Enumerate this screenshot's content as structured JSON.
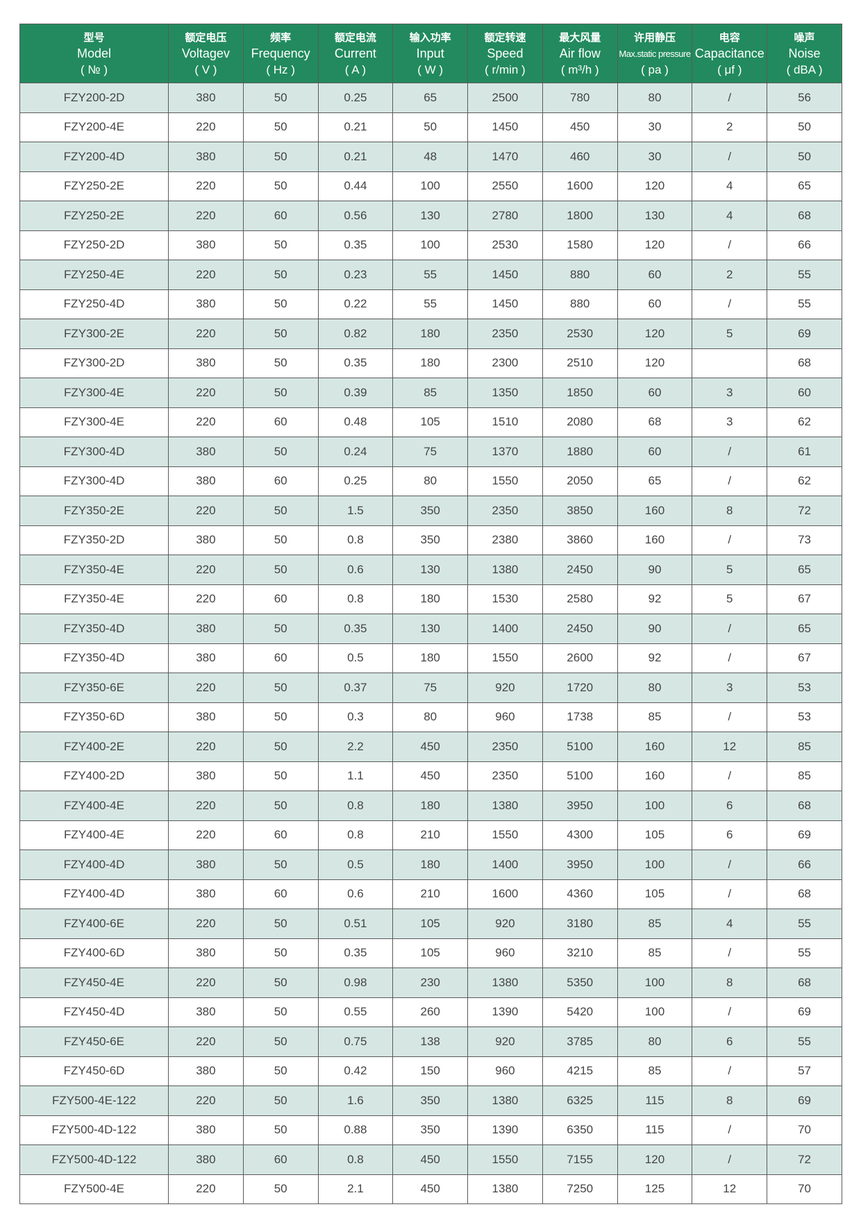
{
  "table": {
    "headers": [
      [
        "型号",
        "Model",
        "( № )"
      ],
      [
        "额定电压",
        "Voltagev",
        "( V )"
      ],
      [
        "频率",
        "Frequency",
        "( Hz )"
      ],
      [
        "额定电流",
        "Current",
        "( A )"
      ],
      [
        "输入功率",
        "Input",
        "( W )"
      ],
      [
        "额定转速",
        "Speed",
        "( r/min )"
      ],
      [
        "最大风量",
        "Air flow",
        "( m³/h )"
      ],
      [
        "许用静压",
        "Max.static pressure",
        "( pa )"
      ],
      [
        "电容",
        "Capacitance",
        "( μf )"
      ],
      [
        "噪声",
        "Noise",
        "( dBA )"
      ]
    ],
    "rows": [
      [
        "FZY200-2D",
        "380",
        "50",
        "0.25",
        "65",
        "2500",
        "780",
        "80",
        "/",
        "56"
      ],
      [
        "FZY200-4E",
        "220",
        "50",
        "0.21",
        "50",
        "1450",
        "450",
        "30",
        "2",
        "50"
      ],
      [
        "FZY200-4D",
        "380",
        "50",
        "0.21",
        "48",
        "1470",
        "460",
        "30",
        "/",
        "50"
      ],
      [
        "FZY250-2E",
        "220",
        "50",
        "0.44",
        "100",
        "2550",
        "1600",
        "120",
        "4",
        "65"
      ],
      [
        "FZY250-2E",
        "220",
        "60",
        "0.56",
        "130",
        "2780",
        "1800",
        "130",
        "4",
        "68"
      ],
      [
        "FZY250-2D",
        "380",
        "50",
        "0.35",
        "100",
        "2530",
        "1580",
        "120",
        "/",
        "66"
      ],
      [
        "FZY250-4E",
        "220",
        "50",
        "0.23",
        "55",
        "1450",
        "880",
        "60",
        "2",
        "55"
      ],
      [
        "FZY250-4D",
        "380",
        "50",
        "0.22",
        "55",
        "1450",
        "880",
        "60",
        "/",
        "55"
      ],
      [
        "FZY300-2E",
        "220",
        "50",
        "0.82",
        "180",
        "2350",
        "2530",
        "120",
        "5",
        "69"
      ],
      [
        "FZY300-2D",
        "380",
        "50",
        "0.35",
        "180",
        "2300",
        "2510",
        "120",
        null,
        "68"
      ],
      [
        "FZY300-4E",
        "220",
        "50",
        "0.39",
        "85",
        "1350",
        "1850",
        "60",
        "3",
        "60"
      ],
      [
        "FZY300-4E",
        "220",
        "60",
        "0.48",
        "105",
        "1510",
        "2080",
        "68",
        "3",
        "62"
      ],
      [
        "FZY300-4D",
        "380",
        "50",
        "0.24",
        "75",
        "1370",
        "1880",
        "60",
        "/",
        "61"
      ],
      [
        "FZY300-4D",
        "380",
        "60",
        "0.25",
        "80",
        "1550",
        "2050",
        "65",
        "/",
        "62"
      ],
      [
        "FZY350-2E",
        "220",
        "50",
        "1.5",
        "350",
        "2350",
        "3850",
        "160",
        "8",
        "72"
      ],
      [
        "FZY350-2D",
        "380",
        "50",
        "0.8",
        "350",
        "2380",
        "3860",
        "160",
        "/",
        "73"
      ],
      [
        "FZY350-4E",
        "220",
        "50",
        "0.6",
        "130",
        "1380",
        "2450",
        "90",
        "5",
        "65"
      ],
      [
        "FZY350-4E",
        "220",
        "60",
        "0.8",
        "180",
        "1530",
        "2580",
        "92",
        "5",
        "67"
      ],
      [
        "FZY350-4D",
        "380",
        "50",
        "0.35",
        "130",
        "1400",
        "2450",
        "90",
        "/",
        "65"
      ],
      [
        "FZY350-4D",
        "380",
        "60",
        "0.5",
        "180",
        "1550",
        "2600",
        "92",
        "/",
        "67"
      ],
      [
        "FZY350-6E",
        "220",
        "50",
        "0.37",
        "75",
        "920",
        "1720",
        "80",
        "3",
        "53"
      ],
      [
        "FZY350-6D",
        "380",
        "50",
        "0.3",
        "80",
        "960",
        "1738",
        "85",
        "/",
        "53"
      ],
      [
        "FZY400-2E",
        "220",
        "50",
        "2.2",
        "450",
        "2350",
        "5100",
        "160",
        "12",
        "85"
      ],
      [
        "FZY400-2D",
        "380",
        "50",
        "1.1",
        "450",
        "2350",
        "5100",
        "160",
        "/",
        "85"
      ],
      [
        "FZY400-4E",
        "220",
        "50",
        "0.8",
        "180",
        "1380",
        "3950",
        "100",
        "6",
        "68"
      ],
      [
        "FZY400-4E",
        "220",
        "60",
        "0.8",
        "210",
        "1550",
        "4300",
        "105",
        "6",
        "69"
      ],
      [
        "FZY400-4D",
        "380",
        "50",
        "0.5",
        "180",
        "1400",
        "3950",
        "100",
        "/",
        "66"
      ],
      [
        "FZY400-4D",
        "380",
        "60",
        "0.6",
        "210",
        "1600",
        "4360",
        "105",
        "/",
        "68"
      ],
      [
        "FZY400-6E",
        "220",
        "50",
        "0.51",
        "105",
        "920",
        "3180",
        "85",
        "4",
        "55"
      ],
      [
        "FZY400-6D",
        "380",
        "50",
        "0.35",
        "105",
        "960",
        "3210",
        "85",
        "/",
        "55"
      ],
      [
        "FZY450-4E",
        "220",
        "50",
        "0.98",
        "230",
        "1380",
        "5350",
        "100",
        "8",
        "68"
      ],
      [
        "FZY450-4D",
        "380",
        "50",
        "0.55",
        "260",
        "1390",
        "5420",
        "100",
        "/",
        "69"
      ],
      [
        "FZY450-6E",
        "220",
        "50",
        "0.75",
        "138",
        "920",
        "3785",
        "80",
        "6",
        "55"
      ],
      [
        "FZY450-6D",
        "380",
        "50",
        "0.42",
        "150",
        "960",
        "4215",
        "85",
        "/",
        "57"
      ],
      [
        "FZY500-4E-122",
        "220",
        "50",
        "1.6",
        "350",
        "1380",
        "6325",
        "115",
        "8",
        "69"
      ],
      [
        "FZY500-4D-122",
        "380",
        "50",
        "0.88",
        "350",
        "1390",
        "6350",
        "115",
        "/",
        "70"
      ],
      [
        "FZY500-4D-122",
        "380",
        "60",
        "0.8",
        "450",
        "1550",
        "7155",
        "120",
        "/",
        "72"
      ],
      [
        "FZY500-4E",
        "220",
        "50",
        "2.1",
        "450",
        "1380",
        "7250",
        "125",
        "12",
        "70"
      ]
    ]
  }
}
